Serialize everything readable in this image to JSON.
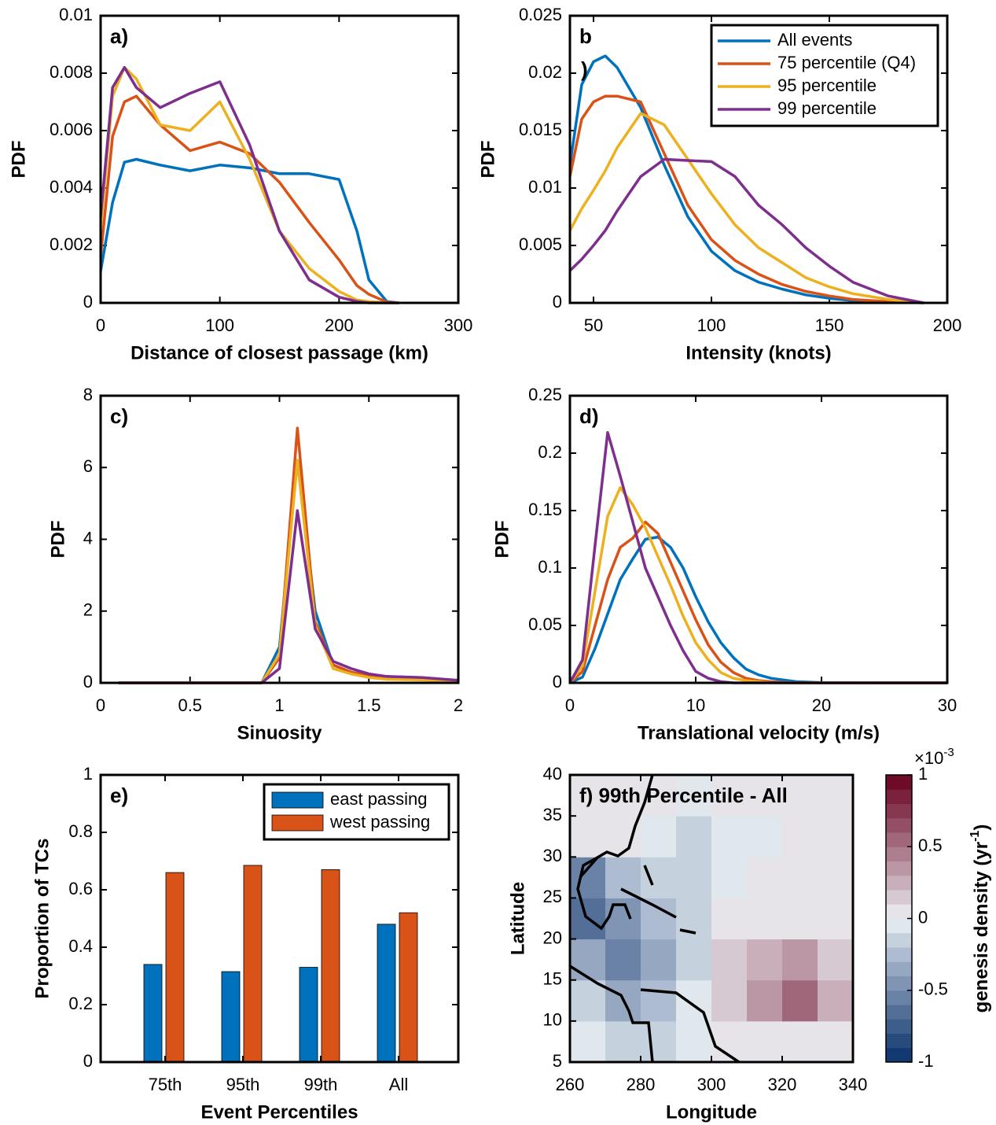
{
  "chart_data": [
    {
      "type": "line",
      "title": "a)",
      "xlabel": "Distance of closest passage (km)",
      "ylabel": "PDF",
      "x": [
        0,
        10,
        20,
        30,
        50,
        75,
        100,
        125,
        150,
        175,
        200,
        215,
        225,
        240,
        250
      ],
      "series": [
        {
          "name": "All events",
          "color": "#0072bd",
          "values": [
            0.0011,
            0.0035,
            0.0049,
            0.005,
            0.0048,
            0.0046,
            0.0048,
            0.0047,
            0.0045,
            0.0045,
            0.0043,
            0.0025,
            0.0008,
            5e-05,
            0
          ]
        },
        {
          "name": "75 percentile (Q4)",
          "color": "#d95319",
          "values": [
            0.0016,
            0.0058,
            0.007,
            0.0072,
            0.0062,
            0.0053,
            0.0056,
            0.0052,
            0.0042,
            0.0028,
            0.0015,
            0.0006,
            0.0003,
            3e-05,
            0
          ]
        },
        {
          "name": "95 percentile",
          "color": "#edb120",
          "values": [
            0.0026,
            0.0072,
            0.0082,
            0.0078,
            0.0062,
            0.006,
            0.007,
            0.005,
            0.0025,
            0.0012,
            0.0004,
            0.0001,
            5e-05,
            0,
            0
          ]
        },
        {
          "name": "99 percentile",
          "color": "#7e2f8e",
          "values": [
            0.003,
            0.0075,
            0.0082,
            0.0075,
            0.0068,
            0.0073,
            0.0077,
            0.0055,
            0.0025,
            0.0008,
            0.0002,
            5e-05,
            0,
            0,
            0
          ]
        }
      ],
      "xlim": [
        0,
        300
      ],
      "ylim": [
        0,
        0.01
      ],
      "xticks": [
        0,
        100,
        200,
        300
      ],
      "yticks": [
        0,
        0.002,
        0.004,
        0.006,
        0.008,
        0.01
      ]
    },
    {
      "type": "line",
      "title": "b",
      "title_suffix": ")",
      "xlabel": "Intensity (knots)",
      "ylabel": "PDF",
      "legend": "northeast",
      "x": [
        40,
        45,
        50,
        55,
        60,
        70,
        80,
        90,
        100,
        110,
        120,
        130,
        140,
        150,
        160,
        175,
        190
      ],
      "series": [
        {
          "name": "All events",
          "color": "#0072bd",
          "values": [
            0.012,
            0.019,
            0.021,
            0.0215,
            0.0205,
            0.017,
            0.012,
            0.0075,
            0.0045,
            0.0028,
            0.0018,
            0.0012,
            0.0007,
            0.0004,
            0.0002,
            0.0001,
            0
          ]
        },
        {
          "name": "75 percentile (Q4)",
          "color": "#d95319",
          "values": [
            0.011,
            0.016,
            0.0175,
            0.018,
            0.018,
            0.0175,
            0.013,
            0.0085,
            0.0055,
            0.0037,
            0.0025,
            0.0016,
            0.001,
            0.0006,
            0.0003,
            0.0001,
            0
          ]
        },
        {
          "name": "95 percentile",
          "color": "#edb120",
          "values": [
            0.0063,
            0.0082,
            0.0098,
            0.0115,
            0.0135,
            0.0165,
            0.0155,
            0.0125,
            0.0095,
            0.0068,
            0.0048,
            0.0035,
            0.0022,
            0.0014,
            0.0008,
            0.0003,
            0
          ]
        },
        {
          "name": "99 percentile",
          "color": "#7e2f8e",
          "values": [
            0.0028,
            0.0038,
            0.005,
            0.0063,
            0.008,
            0.011,
            0.0125,
            0.0124,
            0.0123,
            0.011,
            0.0085,
            0.0068,
            0.0048,
            0.0032,
            0.0018,
            0.0006,
            0
          ]
        }
      ],
      "xlim": [
        40,
        200
      ],
      "ylim": [
        0,
        0.025
      ],
      "xticks": [
        50,
        100,
        150,
        200
      ],
      "yticks": [
        0,
        0.005,
        0.01,
        0.015,
        0.02,
        0.025
      ]
    },
    {
      "type": "line",
      "title": "c)",
      "xlabel": "Sinuosity",
      "ylabel": "PDF",
      "x": [
        0.1,
        0.9,
        1.0,
        1.1,
        1.2,
        1.3,
        1.4,
        1.5,
        1.6,
        1.8,
        2.0
      ],
      "series": [
        {
          "name": "All events",
          "color": "#0072bd",
          "values": [
            0,
            0,
            1.0,
            6.2,
            2.0,
            0.5,
            0.3,
            0.2,
            0.15,
            0.1,
            0.05
          ]
        },
        {
          "name": "75 percentile (Q4)",
          "color": "#d95319",
          "values": [
            0,
            0,
            0.7,
            7.1,
            1.7,
            0.5,
            0.3,
            0.2,
            0.15,
            0.1,
            0.05
          ]
        },
        {
          "name": "95 percentile",
          "color": "#edb120",
          "values": [
            0,
            0,
            0.8,
            6.2,
            1.6,
            0.4,
            0.25,
            0.15,
            0.1,
            0.08,
            0.05
          ]
        },
        {
          "name": "99 percentile",
          "color": "#7e2f8e",
          "values": [
            0,
            0,
            0.4,
            4.8,
            1.5,
            0.6,
            0.4,
            0.25,
            0.18,
            0.15,
            0.07
          ]
        }
      ],
      "xlim": [
        0,
        2
      ],
      "ylim": [
        0,
        8
      ],
      "xticks": [
        0,
        0.5,
        1,
        1.5,
        2
      ],
      "yticks": [
        0,
        2,
        4,
        6,
        8
      ]
    },
    {
      "type": "line",
      "title": "d)",
      "xlabel": "Translational velocity (m/s)",
      "ylabel": "PDF",
      "x": [
        0,
        1,
        2,
        3,
        4,
        5,
        6,
        7,
        8,
        9,
        10,
        11,
        12,
        13,
        14,
        15,
        16,
        18,
        20,
        25,
        30
      ],
      "series": [
        {
          "name": "All events",
          "color": "#0072bd",
          "values": [
            0,
            0.005,
            0.03,
            0.06,
            0.09,
            0.108,
            0.125,
            0.127,
            0.118,
            0.1,
            0.075,
            0.053,
            0.035,
            0.022,
            0.012,
            0.007,
            0.004,
            0.001,
            0.0003,
            0,
            0
          ]
        },
        {
          "name": "75 percentile (Q4)",
          "color": "#d95319",
          "values": [
            0,
            0.01,
            0.05,
            0.09,
            0.118,
            0.126,
            0.14,
            0.13,
            0.105,
            0.08,
            0.055,
            0.033,
            0.018,
            0.009,
            0.004,
            0.002,
            0.001,
            0,
            0,
            0,
            0
          ]
        },
        {
          "name": "95 percentile",
          "color": "#edb120",
          "values": [
            0,
            0.015,
            0.08,
            0.145,
            0.17,
            0.155,
            0.135,
            0.11,
            0.085,
            0.058,
            0.035,
            0.02,
            0.009,
            0.004,
            0.002,
            0.001,
            0,
            0,
            0,
            0,
            0
          ]
        },
        {
          "name": "99 percentile",
          "color": "#7e2f8e",
          "values": [
            0,
            0.02,
            0.12,
            0.218,
            0.18,
            0.14,
            0.1,
            0.075,
            0.05,
            0.028,
            0.01,
            0.004,
            0.001,
            0,
            0,
            0,
            0,
            0,
            0,
            0,
            0
          ]
        }
      ],
      "xlim": [
        0,
        30
      ],
      "ylim": [
        0,
        0.25
      ],
      "xticks": [
        0,
        10,
        20,
        30
      ],
      "yticks": [
        0,
        0.05,
        0.1,
        0.15,
        0.2,
        0.25
      ]
    },
    {
      "type": "bar",
      "title": "e)",
      "xlabel": "Event Percentiles",
      "ylabel": "Proportion of TCs",
      "legend": "northeast",
      "categories": [
        "75th",
        "95th",
        "99th",
        "All"
      ],
      "series": [
        {
          "name": "east passing",
          "color": "#0072bd",
          "values": [
            0.34,
            0.315,
            0.33,
            0.48
          ]
        },
        {
          "name": "west passing",
          "color": "#d95319",
          "values": [
            0.66,
            0.685,
            0.67,
            0.52
          ]
        }
      ],
      "ylim": [
        0,
        1
      ],
      "yticks": [
        0,
        0.2,
        0.4,
        0.6,
        0.8,
        1
      ]
    },
    {
      "type": "heatmap",
      "title": "f) 99th Percentile - All",
      "xlabel": "Longitude",
      "ylabel": "Latitude",
      "x": [
        265,
        275,
        285,
        295,
        305,
        315,
        325,
        335
      ],
      "y": [
        7.5,
        12.5,
        17.5,
        22.5,
        27.5,
        32.5,
        37.5
      ],
      "z": [
        [
          -0.1,
          -0.2,
          -0.2,
          -0.1,
          0,
          0.05,
          0,
          0
        ],
        [
          -0.2,
          -0.4,
          -0.3,
          -0.1,
          0.15,
          0.3,
          0.5,
          0.2
        ],
        [
          -0.4,
          -0.6,
          -0.4,
          -0.2,
          0.1,
          0.2,
          0.3,
          0.1
        ],
        [
          -0.7,
          -0.5,
          -0.3,
          -0.2,
          0,
          0,
          0,
          0
        ],
        [
          -0.6,
          -0.3,
          -0.15,
          -0.2,
          -0.1,
          0,
          0,
          0
        ],
        [
          0,
          0,
          -0.1,
          -0.2,
          -0.1,
          -0.05,
          0,
          0
        ],
        [
          0,
          0,
          0,
          -0.05,
          0,
          0,
          0,
          0
        ]
      ],
      "xlim": [
        260,
        340
      ],
      "ylim": [
        5,
        40
      ],
      "xticks": [
        260,
        280,
        300,
        320,
        340
      ],
      "yticks": [
        5,
        10,
        15,
        20,
        25,
        30,
        35,
        40
      ],
      "clim": [
        -1,
        1
      ],
      "colorbar_ticks": [
        -1,
        -0.5,
        0,
        0.5,
        1
      ],
      "colorbar_label": "genesis density (yr",
      "colorbar_label_superscript": "-1",
      "colorbar_label_end": ")",
      "colorbar_multiplier": "×10",
      "colorbar_multiplier_exponent": "-3"
    }
  ]
}
